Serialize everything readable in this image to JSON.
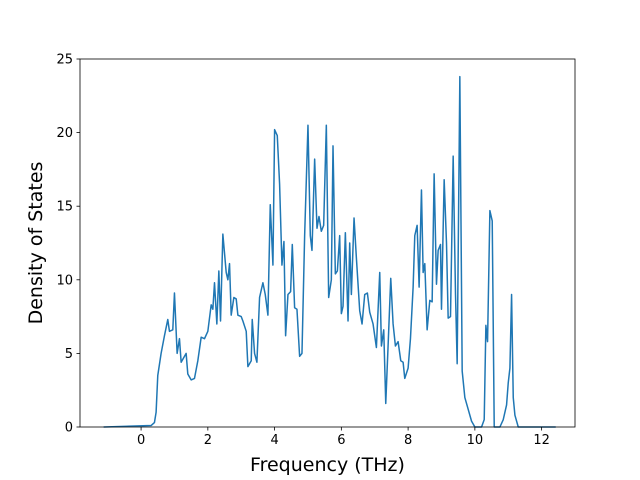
{
  "chart_data": {
    "type": "line",
    "xlabel": "Frequency (THz)",
    "ylabel": "Density of States",
    "xlim": [
      -1.83,
      13.0
    ],
    "ylim": [
      0,
      25
    ],
    "xticks": [
      0,
      2,
      4,
      6,
      8,
      10,
      12
    ],
    "yticks": [
      0,
      5,
      10,
      15,
      20,
      25
    ],
    "series": [
      {
        "color": "#1f77b4",
        "x": [
          -1.1,
          0.3,
          0.4,
          0.45,
          0.5,
          0.6,
          0.7,
          0.8,
          0.85,
          0.95,
          1.0,
          1.08,
          1.15,
          1.2,
          1.35,
          1.4,
          1.5,
          1.6,
          1.7,
          1.8,
          1.9,
          2.0,
          2.1,
          2.15,
          2.2,
          2.27,
          2.33,
          2.38,
          2.45,
          2.55,
          2.6,
          2.65,
          2.7,
          2.78,
          2.85,
          2.9,
          3.0,
          3.05,
          3.15,
          3.2,
          3.3,
          3.33,
          3.4,
          3.47,
          3.55,
          3.65,
          3.72,
          3.8,
          3.87,
          3.95,
          4.0,
          4.08,
          4.15,
          4.22,
          4.28,
          4.33,
          4.4,
          4.48,
          4.53,
          4.6,
          4.67,
          4.75,
          4.82,
          4.9,
          5.0,
          5.07,
          5.12,
          5.2,
          5.27,
          5.33,
          5.4,
          5.47,
          5.55,
          5.62,
          5.7,
          5.75,
          5.82,
          5.88,
          5.95,
          6.0,
          6.05,
          6.12,
          6.2,
          6.25,
          6.3,
          6.38,
          6.45,
          6.55,
          6.62,
          6.7,
          6.78,
          6.85,
          6.95,
          7.05,
          7.15,
          7.2,
          7.27,
          7.33,
          7.4,
          7.48,
          7.55,
          7.62,
          7.7,
          7.78,
          7.85,
          7.9,
          8.0,
          8.07,
          8.15,
          8.2,
          8.27,
          8.33,
          8.4,
          8.45,
          8.5,
          8.57,
          8.65,
          8.72,
          8.78,
          8.85,
          8.9,
          8.97,
          9.0,
          9.08,
          9.15,
          9.2,
          9.27,
          9.35,
          9.42,
          9.47,
          9.55,
          9.62,
          9.7,
          9.8,
          9.9,
          10.0,
          10.2,
          10.28,
          10.33,
          10.38,
          10.45,
          10.52,
          10.58,
          10.75,
          10.85,
          10.95,
          11.0,
          11.05,
          11.1,
          11.15,
          11.2,
          11.3,
          12.4
        ],
        "values": [
          0,
          0.1,
          0.3,
          1.0,
          3.5,
          5,
          6.2,
          7.3,
          6.5,
          6.6,
          9.1,
          5,
          6,
          4.4,
          5,
          3.6,
          3.2,
          3.3,
          4.5,
          6.1,
          6,
          6.5,
          8.3,
          8,
          9.8,
          7,
          10.6,
          7.2,
          13.1,
          10.5,
          10,
          11.1,
          7.6,
          8.8,
          8.7,
          7.6,
          7.5,
          7.2,
          6.5,
          4.1,
          4.5,
          7.3,
          5,
          4.4,
          8.8,
          9.8,
          9,
          7.6,
          15.1,
          11,
          20.2,
          19.8,
          16.5,
          11,
          12.6,
          6.2,
          9.0,
          9.2,
          12.4,
          8.1,
          8,
          4.8,
          5,
          13,
          20.5,
          13,
          12,
          18.2,
          13.5,
          14.3,
          13.3,
          13.7,
          20.5,
          8.8,
          10,
          19.1,
          10.4,
          10.6,
          13,
          7.7,
          8.2,
          13.2,
          7.2,
          12.5,
          9,
          14.2,
          11.5,
          7.9,
          7,
          9,
          9.1,
          7.8,
          7,
          5.4,
          10.5,
          5.5,
          6.6,
          1.6,
          5.5,
          10.1,
          7,
          5.5,
          5.8,
          4.5,
          4.4,
          3.3,
          4,
          6,
          9.5,
          13,
          13.7,
          9.5,
          16.1,
          10.5,
          11.1,
          6.6,
          8.6,
          8.5,
          17.2,
          9.7,
          12,
          12.4,
          8,
          16.8,
          12.5,
          7.4,
          7.5,
          18.4,
          9,
          4.3,
          23.8,
          3.8,
          2,
          1.2,
          0.4,
          0,
          0,
          0.5,
          6.9,
          5.8,
          14.7,
          14,
          0,
          0,
          0.5,
          1.5,
          3,
          4,
          9,
          2,
          0.8,
          0,
          0
        ]
      }
    ]
  }
}
